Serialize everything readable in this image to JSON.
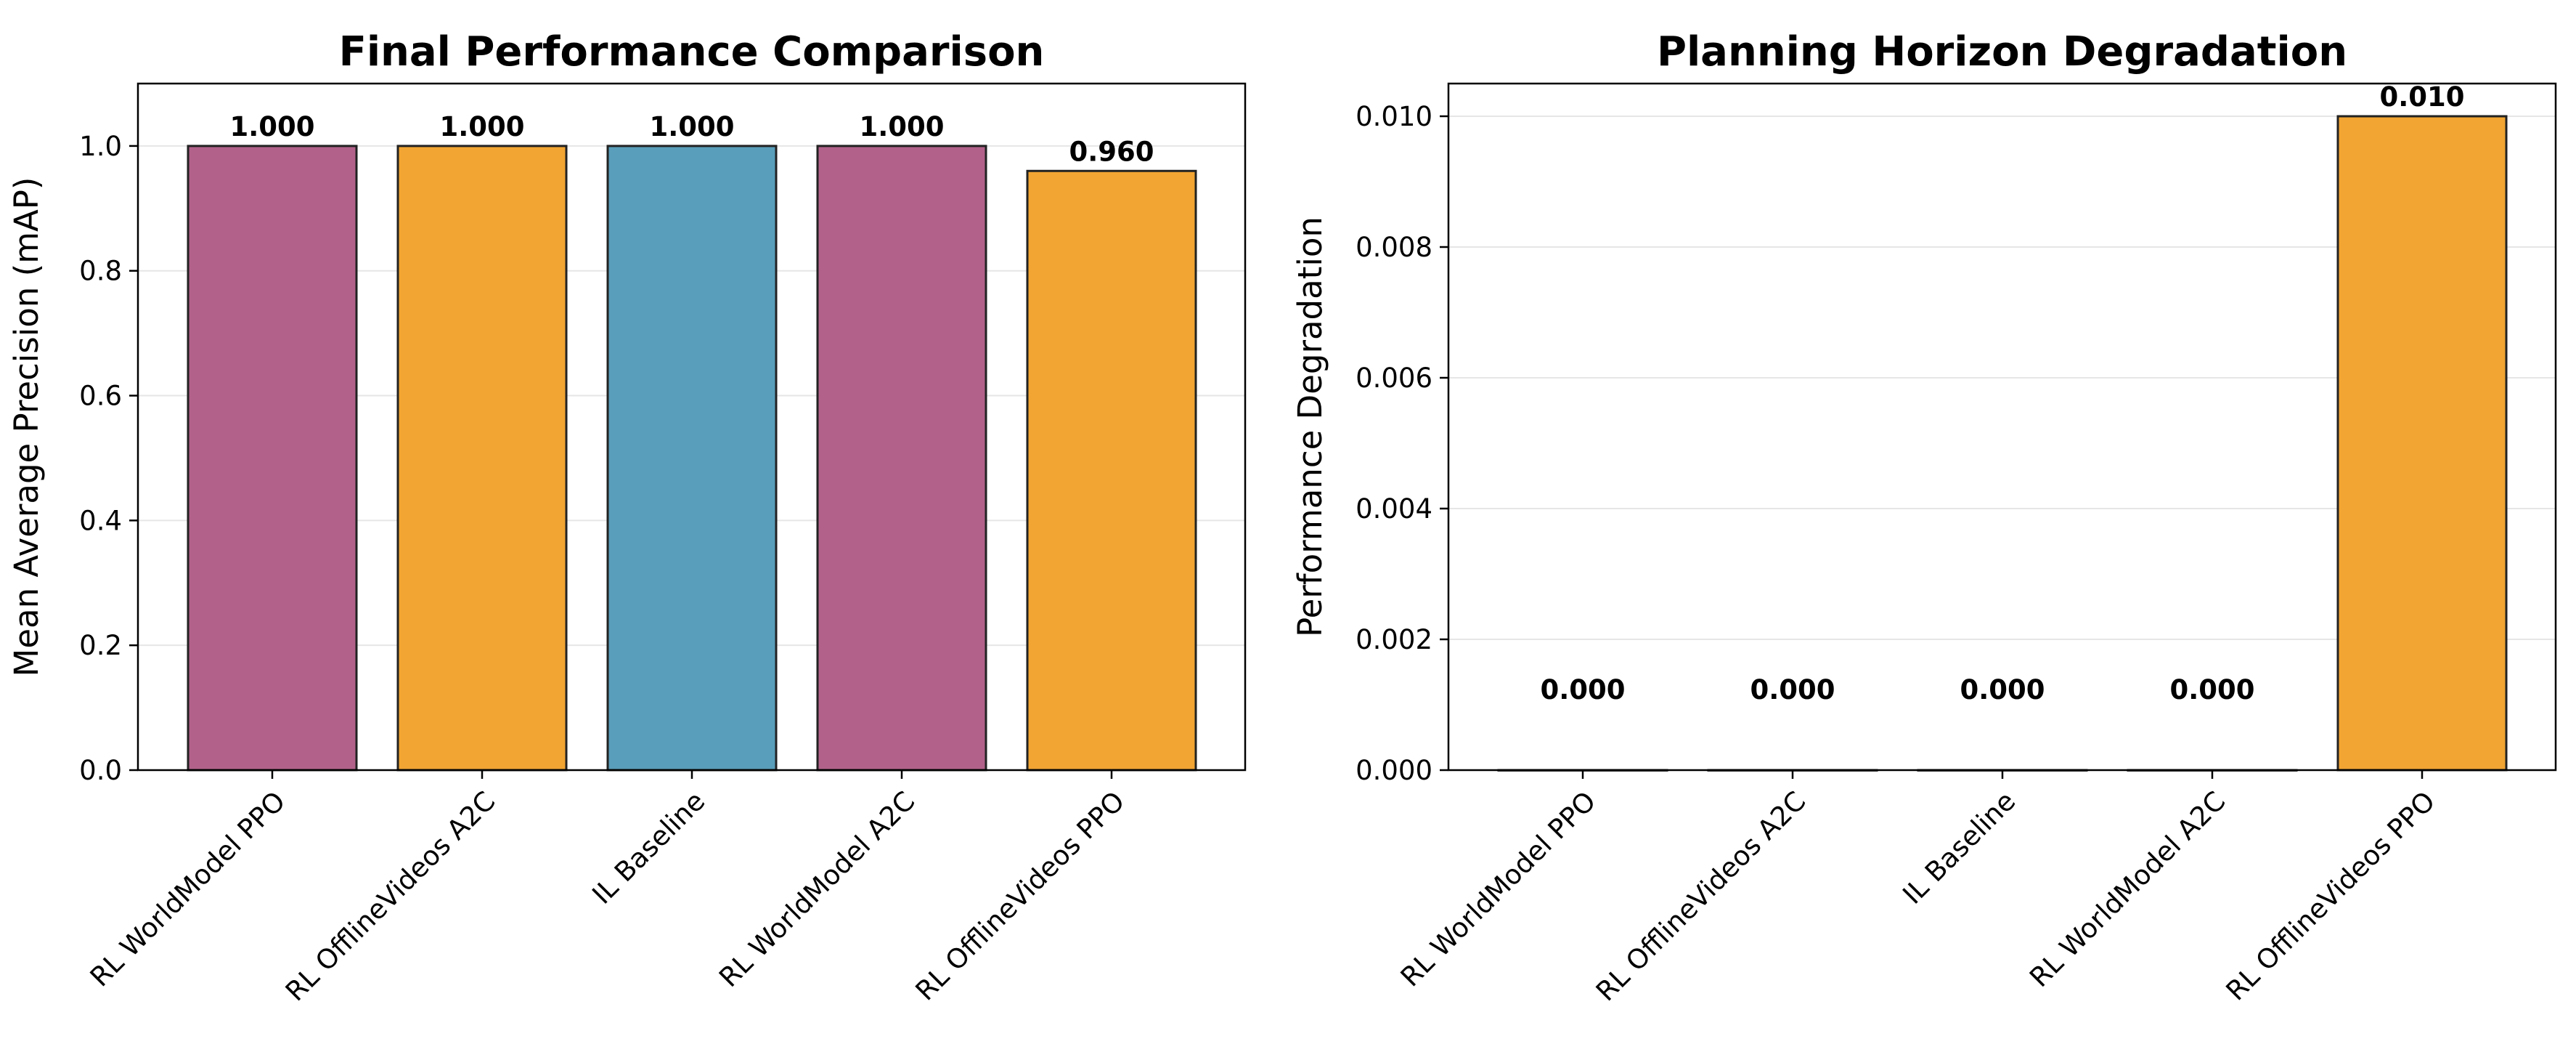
{
  "chart_data": [
    {
      "type": "bar",
      "title": "Final Performance Comparison",
      "xlabel": "",
      "ylabel": "Mean Average Precision (mAP)",
      "categories": [
        "RL WorldModel PPO",
        "RL OfflineVideos A2C",
        "IL Baseline",
        "RL WorldModel A2C",
        "RL OfflineVideos PPO"
      ],
      "values": [
        1.0,
        1.0,
        1.0,
        1.0,
        0.96
      ],
      "value_labels": [
        "1.000",
        "1.000",
        "1.000",
        "1.000",
        "0.960"
      ],
      "bar_colors": [
        "#b2628a",
        "#f2a533",
        "#599eba",
        "#b2628a",
        "#f2a533"
      ],
      "ylim": [
        0,
        1.1
      ],
      "yticks": [
        0.0,
        0.2,
        0.4,
        0.6,
        0.8,
        1.0
      ],
      "ytick_labels": [
        "0.0",
        "0.2",
        "0.4",
        "0.6",
        "0.8",
        "1.0"
      ],
      "grid": "y",
      "legend": "none"
    },
    {
      "type": "bar",
      "title": "Planning Horizon Degradation",
      "xlabel": "",
      "ylabel": "Performance Degradation",
      "categories": [
        "RL WorldModel PPO",
        "RL OfflineVideos A2C",
        "IL Baseline",
        "RL WorldModel A2C",
        "RL OfflineVideos PPO"
      ],
      "values": [
        0.0,
        0.0,
        0.0,
        0.0,
        0.01
      ],
      "value_labels": [
        "0.000",
        "0.000",
        "0.000",
        "0.000",
        "0.010"
      ],
      "bar_colors": [
        "#b2628a",
        "#f2a533",
        "#599eba",
        "#b2628a",
        "#f2a533"
      ],
      "ylim": [
        0,
        0.0105
      ],
      "yticks": [
        0.0,
        0.002,
        0.004,
        0.006,
        0.008,
        0.01
      ],
      "ytick_labels": [
        "0.000",
        "0.002",
        "0.004",
        "0.006",
        "0.008",
        "0.010"
      ],
      "grid": "y",
      "legend": "none"
    }
  ]
}
